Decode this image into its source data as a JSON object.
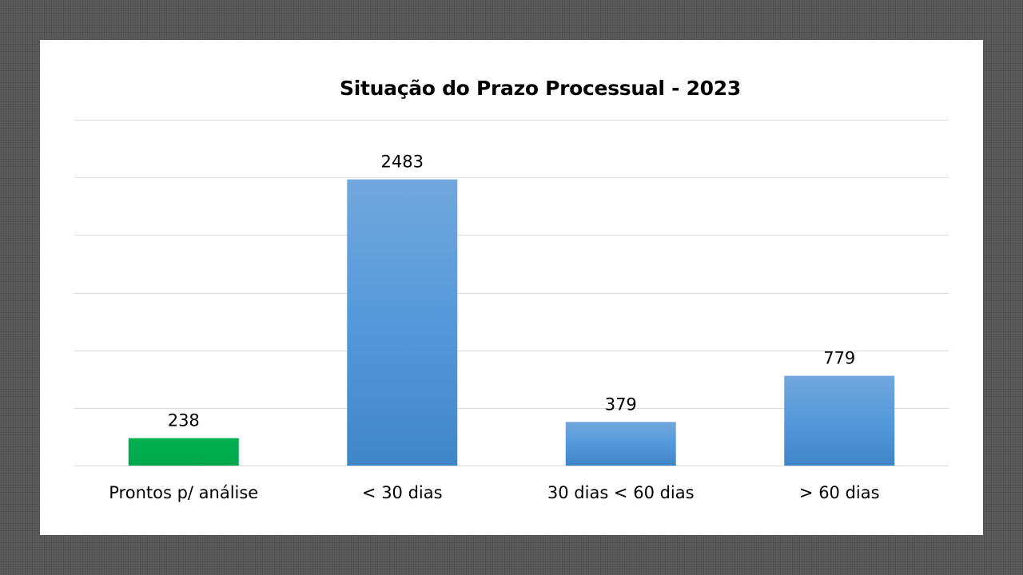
{
  "chart_data": {
    "type": "bar",
    "title": "Situação do Prazo Processual - 2023",
    "categories": [
      "Prontos p/ análise",
      "< 30 dias",
      "30 dias < 60 dias",
      "> 60 dias"
    ],
    "values": [
      238,
      2483,
      379,
      779
    ],
    "bar_colors": [
      "#00b050",
      "#5b9bd5",
      "#5b9bd5",
      "#5b9bd5"
    ],
    "ylim": [
      0,
      3000
    ],
    "gridlines": true,
    "legend": "none",
    "xlabel": "",
    "ylabel": ""
  }
}
